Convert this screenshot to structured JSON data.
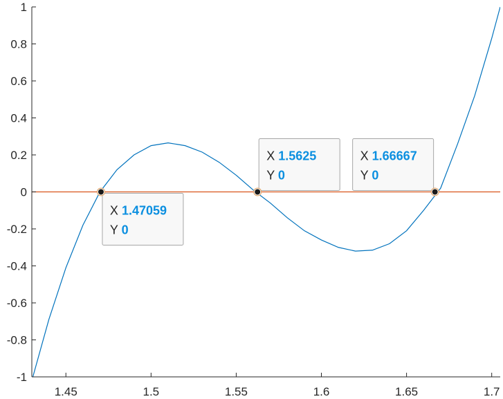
{
  "chart_data": {
    "type": "line",
    "xlim": [
      1.43,
      1.705
    ],
    "ylim": [
      -1,
      1
    ],
    "xticks": [
      1.45,
      1.5,
      1.55,
      1.6,
      1.65,
      1.7
    ],
    "xtick_labels": [
      "1.45",
      "1.5",
      "1.55",
      "1.6",
      "1.65",
      "1.7"
    ],
    "yticks": [
      -1,
      -0.8,
      -0.6,
      -0.4,
      -0.2,
      0,
      0.2,
      0.4,
      0.6,
      0.8,
      1
    ],
    "ytick_labels": [
      "-1",
      "-0.8",
      "-0.6",
      "-0.4",
      "-0.2",
      "0",
      "0.2",
      "0.4",
      "0.6",
      "0.8",
      "1"
    ],
    "grid": false,
    "series": [
      {
        "color": "#0072bd",
        "x": [
          1.43,
          1.44,
          1.45,
          1.46,
          1.47,
          1.48,
          1.49,
          1.5,
          1.51,
          1.52,
          1.53,
          1.54,
          1.55,
          1.56,
          1.57,
          1.58,
          1.59,
          1.6,
          1.61,
          1.62,
          1.63,
          1.64,
          1.65,
          1.66,
          1.67,
          1.68,
          1.69,
          1.7,
          1.705
        ],
        "y": [
          -1.02,
          -0.69,
          -0.41,
          -0.18,
          0.0,
          0.12,
          0.2,
          0.25,
          0.265,
          0.25,
          0.215,
          0.16,
          0.09,
          0.01,
          -0.06,
          -0.14,
          -0.21,
          -0.26,
          -0.3,
          -0.32,
          -0.315,
          -0.28,
          -0.21,
          -0.1,
          0.02,
          0.26,
          0.52,
          0.83,
          1.0
        ]
      },
      {
        "color": "#d95319",
        "x": [
          1.43,
          1.705
        ],
        "y": [
          0,
          0
        ]
      }
    ],
    "annotations": [
      {
        "x": 1.47059,
        "y": 0,
        "x_label": "X",
        "x_value": "1.47059",
        "y_label": "Y",
        "y_value": "0",
        "tip_side": "below-right"
      },
      {
        "x": 1.5625,
        "y": 0,
        "x_label": "X",
        "x_value": "1.5625",
        "y_label": "Y",
        "y_value": "0",
        "tip_side": "above-right"
      },
      {
        "x": 1.66667,
        "y": 0,
        "x_label": "X",
        "x_value": "1.66667",
        "y_label": "Y",
        "y_value": "0",
        "tip_side": "above-left"
      }
    ]
  }
}
